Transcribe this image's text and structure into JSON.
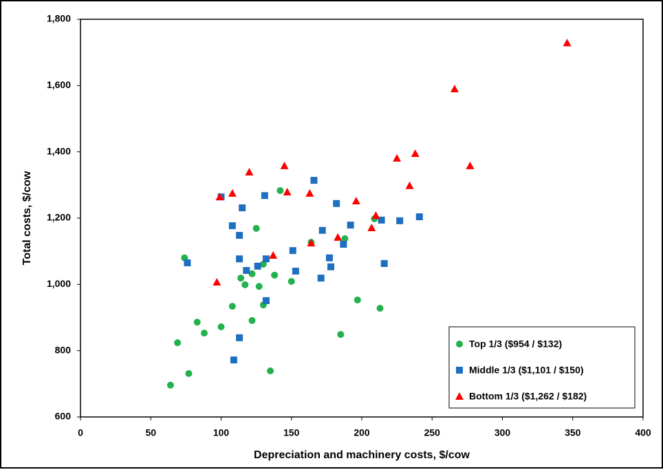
{
  "chart_data": {
    "type": "scatter",
    "xlabel": "Depreciation and machinery costs, $/cow",
    "ylabel": "Total costs, $/cow",
    "xlim": [
      0,
      400
    ],
    "xticks": [
      0,
      50,
      100,
      150,
      200,
      250,
      300,
      350,
      400
    ],
    "ylim": [
      600,
      1800
    ],
    "yticks": [
      {
        "value": 600,
        "label": "600"
      },
      {
        "value": 800,
        "label": "800"
      },
      {
        "value": 1000,
        "label": "1,000"
      },
      {
        "value": 1200,
        "label": "1,200"
      },
      {
        "value": 1400,
        "label": "1,400"
      },
      {
        "value": 1600,
        "label": "1,600"
      },
      {
        "value": 1800,
        "label": "1,800"
      }
    ],
    "legend": "lower right",
    "series": [
      {
        "name": "Top 1/3 ($954 / $132)",
        "color": "#22b14c",
        "marker": "circle",
        "x": [
          64,
          69,
          77,
          83,
          88,
          74,
          100,
          108,
          114,
          117,
          122,
          122,
          127,
          125,
          130,
          130,
          135,
          138,
          142,
          150,
          164,
          185,
          188,
          197,
          209,
          213
        ],
        "values": [
          696,
          824,
          731,
          886,
          853,
          1080,
          872,
          934,
          1019,
          999,
          891,
          1032,
          994,
          1169,
          1061,
          938,
          739,
          1028,
          1283,
          1009,
          1127,
          849,
          1138,
          953,
          1198,
          928
        ]
      },
      {
        "name": "Middle 1/3 ($1,101 / $150)",
        "color": "#1f6fc0",
        "marker": "square",
        "x": [
          76,
          100,
          108,
          115,
          113,
          113,
          113,
          109,
          118,
          126,
          131,
          132,
          132,
          151,
          153,
          166,
          171,
          172,
          177,
          178,
          182,
          187,
          192,
          214,
          216,
          227,
          241
        ],
        "values": [
          1065,
          1264,
          1177,
          1231,
          1148,
          1077,
          839,
          772,
          1042,
          1055,
          1268,
          1077,
          951,
          1102,
          1040,
          1314,
          1019,
          1163,
          1080,
          1053,
          1244,
          1121,
          1179,
          1194,
          1063,
          1192,
          1204
        ]
      },
      {
        "name": "Bottom 1/3 ($1,262 / $182)",
        "color": "#ff0000",
        "marker": "triangle",
        "x": [
          97,
          99,
          108,
          120,
          137,
          145,
          147,
          163,
          164,
          183,
          196,
          207,
          210,
          225,
          234,
          238,
          266,
          277,
          346
        ],
        "values": [
          1007,
          1264,
          1275,
          1339,
          1088,
          1358,
          1279,
          1275,
          1125,
          1142,
          1252,
          1171,
          1208,
          1381,
          1298,
          1395,
          1590,
          1358,
          1729
        ]
      }
    ]
  }
}
